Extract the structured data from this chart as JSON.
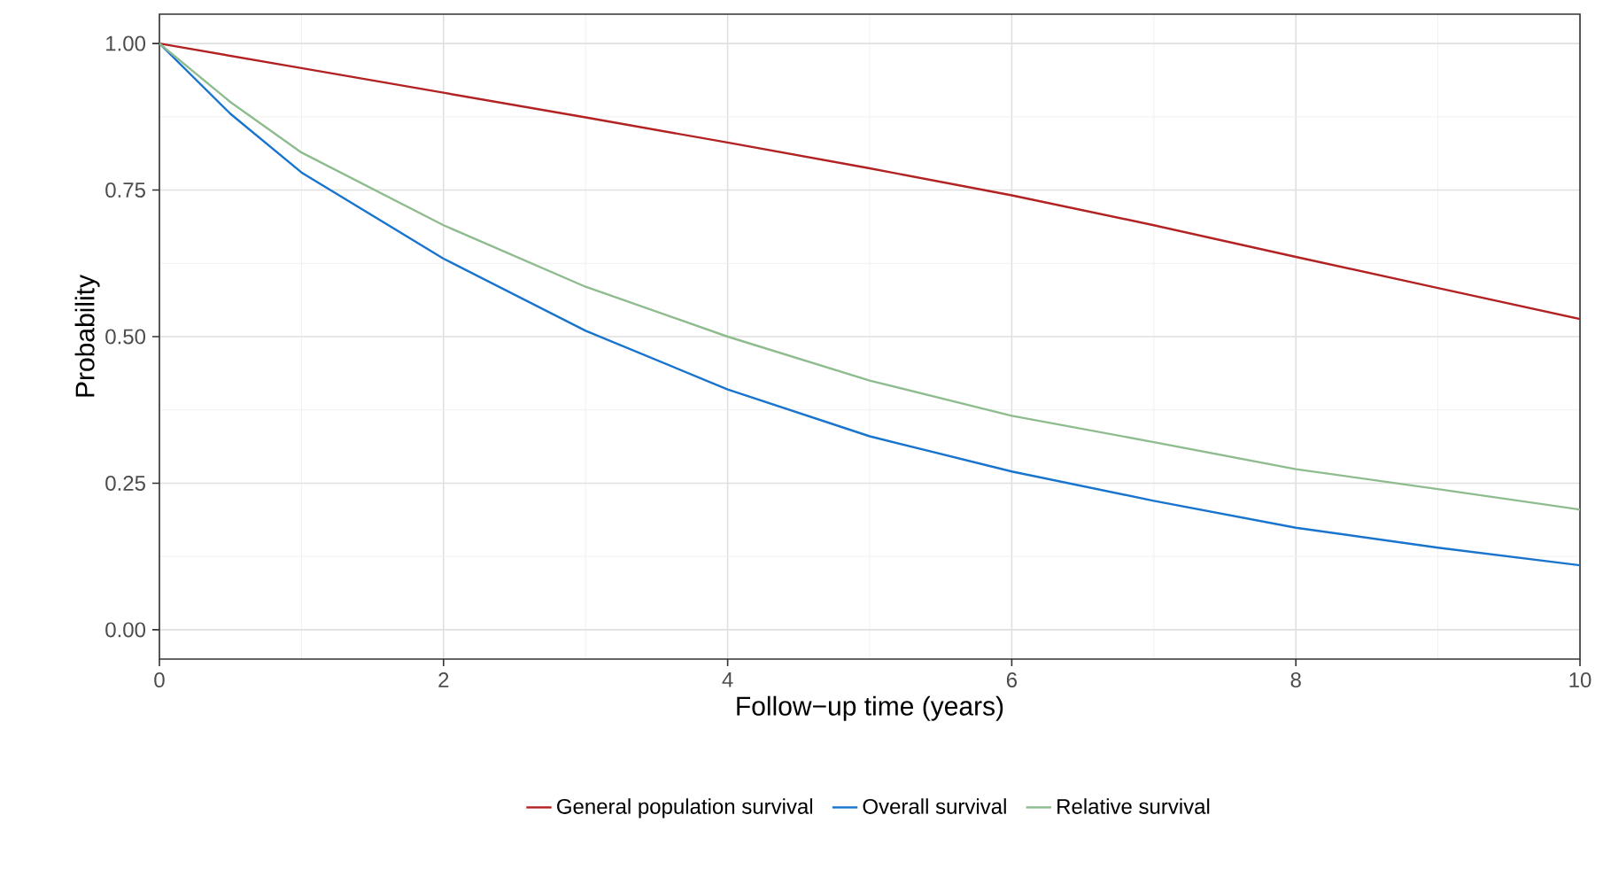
{
  "chart_data": {
    "type": "line",
    "xlabel": "Follow−up time (years)",
    "ylabel": "Probability",
    "xlim": [
      0,
      10
    ],
    "ylim": [
      -0.05,
      1.05
    ],
    "xticks": [
      0,
      2,
      4,
      6,
      8,
      10
    ],
    "yticks": [
      {
        "value": 0,
        "label": "0.00"
      },
      {
        "value": 0.25,
        "label": "0.25"
      },
      {
        "value": 0.5,
        "label": "0.50"
      },
      {
        "value": 0.75,
        "label": "0.75"
      },
      {
        "value": 1,
        "label": "1.00"
      }
    ],
    "grid": true,
    "legend": "bottom",
    "line_style": "solid",
    "marker": "none",
    "x": [
      0,
      0.5,
      1,
      2,
      3,
      4,
      5,
      6,
      7,
      8,
      9,
      10
    ],
    "series": [
      {
        "name": "General population survival",
        "color": "#b22222",
        "values": [
          1,
          0.979,
          0.958,
          0.916,
          0.874,
          0.831,
          0.787,
          0.741,
          0.69,
          0.636,
          0.583,
          0.53
        ]
      },
      {
        "name": "Overall survival",
        "color": "#1874cd",
        "values": [
          1,
          0.88,
          0.78,
          0.633,
          0.51,
          0.41,
          0.33,
          0.27,
          0.22,
          0.174,
          0.14,
          0.11
        ]
      },
      {
        "name": "Relative survival",
        "color": "#8fbc8f",
        "values": [
          1,
          0.9,
          0.814,
          0.69,
          0.585,
          0.5,
          0.425,
          0.365,
          0.32,
          0.274,
          0.24,
          0.205
        ]
      }
    ]
  }
}
